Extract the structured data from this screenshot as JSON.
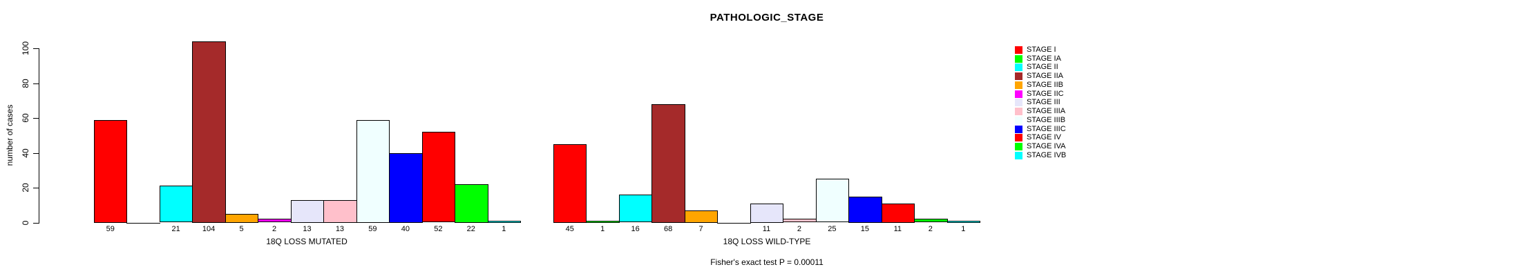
{
  "chart_data": {
    "type": "bar",
    "title": "PATHOLOGIC_STAGE",
    "ylabel": "number of cases",
    "ylim": [
      0,
      110
    ],
    "yticks": [
      0,
      20,
      40,
      60,
      80,
      100
    ],
    "grid": false,
    "legend_position": "right",
    "categories": [
      "STAGE I",
      "STAGE IA",
      "STAGE II",
      "STAGE IIA",
      "STAGE IIB",
      "STAGE IIC",
      "STAGE III",
      "STAGE IIIA",
      "STAGE IIIB",
      "STAGE IIIC",
      "STAGE IV",
      "STAGE IVA",
      "STAGE IVB"
    ],
    "category_colors": [
      "#FF0000",
      "#00FF00",
      "#00FFFF",
      "#A52A2A",
      "#FFA500",
      "#FF00FF",
      "#E6E6FA",
      "#FFC0CB",
      "#F0FFFF",
      "#0000FF",
      "#FF0000",
      "#00FF00",
      "#00FFFF"
    ],
    "series": [
      {
        "name": "18Q LOSS MUTATED",
        "values": [
          59,
          0,
          21,
          104,
          5,
          2,
          13,
          13,
          59,
          40,
          52,
          22,
          1
        ]
      },
      {
        "name": "18Q LOSS WILD-TYPE",
        "values": [
          45,
          1,
          16,
          68,
          7,
          0,
          11,
          2,
          25,
          15,
          11,
          2,
          1
        ]
      }
    ],
    "annotation": "Fisher's exact test P = 0.00011"
  },
  "legend": {
    "entries": [
      {
        "label": "STAGE I",
        "color": "#FF0000"
      },
      {
        "label": "STAGE IA",
        "color": "#00FF00"
      },
      {
        "label": "STAGE II",
        "color": "#00FFFF"
      },
      {
        "label": "STAGE IIA",
        "color": "#A52A2A"
      },
      {
        "label": "STAGE IIB",
        "color": "#FFA500"
      },
      {
        "label": "STAGE IIC",
        "color": "#FF00FF"
      },
      {
        "label": "STAGE III",
        "color": "#E6E6FA"
      },
      {
        "label": "STAGE IIIA",
        "color": "#FFC0CB"
      },
      {
        "label": "STAGE IIIB",
        "color": "#F0FFFF"
      },
      {
        "label": "STAGE IIIC",
        "color": "#0000FF"
      },
      {
        "label": "STAGE IV",
        "color": "#FF0000"
      },
      {
        "label": "STAGE IVA",
        "color": "#00FF00"
      },
      {
        "label": "STAGE IVB",
        "color": "#00FFFF"
      }
    ]
  },
  "colors": {
    "axis": "#000000",
    "background": "#FFFFFF"
  }
}
